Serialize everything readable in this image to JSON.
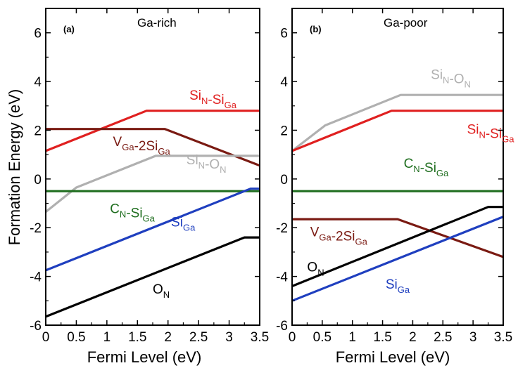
{
  "chart_data": [
    {
      "type": "line",
      "panel_tag": "(a)",
      "title": "Ga-rich",
      "xlabel": "Fermi Level (eV)",
      "ylabel": "Formation Energy (eV)",
      "xlim": [
        0,
        3.5
      ],
      "ylim": [
        -6,
        7
      ],
      "xticks": [
        "0",
        "0.5",
        "1",
        "1.5",
        "2",
        "2.5",
        "3",
        "3.5"
      ],
      "yticks": [
        "-6",
        "-4",
        "-2",
        "0",
        "2",
        "4",
        "6"
      ],
      "series": [
        {
          "name": "Si_N-Si_Ga",
          "label_main": [
            "Si",
            "-Si"
          ],
          "label_sub": [
            "N",
            "Ga"
          ],
          "color": "#e02020",
          "x": [
            0,
            1.65,
            3.5
          ],
          "y": [
            1.15,
            2.8,
            2.8
          ],
          "label_at": [
            2.35,
            3.25
          ]
        },
        {
          "name": "V_Ga-2Si_Ga",
          "label_main": [
            "V",
            "-2Si"
          ],
          "label_sub": [
            "Ga",
            "Ga"
          ],
          "color": "#7a1a12",
          "x": [
            0,
            1.95,
            3.5
          ],
          "y": [
            2.05,
            2.05,
            0.55
          ],
          "label_at": [
            1.1,
            1.35
          ]
        },
        {
          "name": "Si_N-O_N",
          "label_main": [
            "Si",
            "-O"
          ],
          "label_sub": [
            "N",
            "N"
          ],
          "color": "#b0b0b0",
          "x": [
            0,
            0.5,
            1.8,
            3.5
          ],
          "y": [
            -1.35,
            -0.35,
            0.95,
            0.95
          ],
          "label_at": [
            2.3,
            0.6
          ]
        },
        {
          "name": "C_N-Si_Ga",
          "label_main": [
            "C",
            "-Si"
          ],
          "label_sub": [
            "N",
            "Ga"
          ],
          "color": "#1f6e1f",
          "x": [
            0,
            3.5
          ],
          "y": [
            -0.5,
            -0.5
          ],
          "label_at": [
            1.05,
            -1.4
          ]
        },
        {
          "name": "Si_Ga",
          "label_main": [
            "Si"
          ],
          "label_sub": [
            "Ga"
          ],
          "color": "#1f3fbf",
          "x": [
            0,
            3.35,
            3.5
          ],
          "y": [
            -3.75,
            -0.4,
            -0.4
          ],
          "label_at": [
            2.05,
            -1.95
          ]
        },
        {
          "name": "O_N",
          "label_main": [
            "O"
          ],
          "label_sub": [
            "N"
          ],
          "color": "#000000",
          "x": [
            0,
            3.25,
            3.5
          ],
          "y": [
            -5.65,
            -2.4,
            -2.4
          ],
          "label_at": [
            1.75,
            -4.7
          ]
        }
      ]
    },
    {
      "type": "line",
      "panel_tag": "(b)",
      "title": "Ga-poor",
      "xlabel": "Fermi Level (eV)",
      "ylabel": "",
      "xlim": [
        0,
        3.5
      ],
      "ylim": [
        -6,
        7
      ],
      "xticks": [
        "0",
        "0.5",
        "1",
        "1.5",
        "2",
        "2.5",
        "3",
        "3.5"
      ],
      "yticks": [
        "-6",
        "-4",
        "-2",
        "0",
        "2",
        "4",
        "6"
      ],
      "series": [
        {
          "name": "Si_N-O_N",
          "label_main": [
            "Si",
            "-O"
          ],
          "label_sub": [
            "N",
            "N"
          ],
          "color": "#b0b0b0",
          "x": [
            0,
            0.55,
            1.8,
            3.5
          ],
          "y": [
            1.15,
            2.2,
            3.45,
            3.45
          ],
          "label_at": [
            2.3,
            4.1
          ]
        },
        {
          "name": "Si_N-Si_Ga",
          "label_main": [
            "Si",
            "-Si"
          ],
          "label_sub": [
            "N",
            "Ga"
          ],
          "color": "#e02020",
          "x": [
            0,
            1.65,
            3.5
          ],
          "y": [
            1.15,
            2.8,
            2.8
          ],
          "label_at": [
            2.9,
            1.85
          ]
        },
        {
          "name": "C_N-Si_Ga",
          "label_main": [
            "C",
            "-Si"
          ],
          "label_sub": [
            "N",
            "Ga"
          ],
          "color": "#1f6e1f",
          "x": [
            0,
            3.5
          ],
          "y": [
            -0.5,
            -0.5
          ],
          "label_at": [
            1.85,
            0.45
          ]
        },
        {
          "name": "V_Ga-2Si_Ga",
          "label_main": [
            "V",
            "-2Si"
          ],
          "label_sub": [
            "Ga",
            "Ga"
          ],
          "color": "#7a1a12",
          "x": [
            0,
            1.75,
            3.5
          ],
          "y": [
            -1.65,
            -1.65,
            -3.2
          ],
          "label_at": [
            0.3,
            -2.35
          ]
        },
        {
          "name": "O_N",
          "label_main": [
            "O"
          ],
          "label_sub": [
            "N"
          ],
          "color": "#000000",
          "x": [
            0,
            3.25,
            3.5
          ],
          "y": [
            -4.4,
            -1.15,
            -1.15
          ],
          "label_at": [
            0.25,
            -3.8
          ]
        },
        {
          "name": "Si_Ga",
          "label_main": [
            "Si"
          ],
          "label_sub": [
            "Ga"
          ],
          "color": "#1f3fbf",
          "x": [
            0,
            3.5
          ],
          "y": [
            -5.0,
            -1.55
          ],
          "label_at": [
            1.55,
            -4.5
          ]
        }
      ]
    }
  ]
}
